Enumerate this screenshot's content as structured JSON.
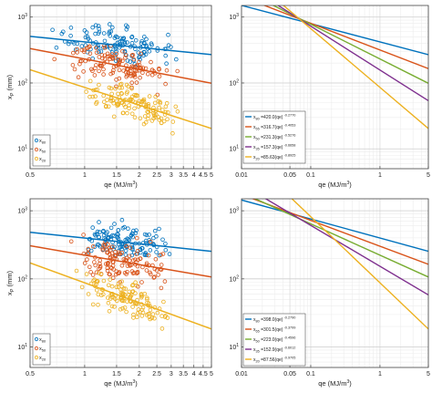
{
  "chart_data": [
    {
      "panel": "top-left",
      "type": "scatter",
      "xlabel": "qe (MJ/m³)",
      "ylabel": "x_P (mm)",
      "xscale": "log",
      "yscale": "log",
      "xlim": [
        0.5,
        5
      ],
      "ylim": [
        5,
        1500
      ],
      "xticks": [
        0.5,
        1,
        1.5,
        2,
        2.5,
        3,
        3.5,
        4,
        4.5,
        5
      ],
      "xtick_labels": [
        "0.5",
        "1",
        "1.5",
        "2",
        "2.5",
        "3",
        "3.5",
        "4",
        "4.5",
        "5"
      ],
      "yticks": [
        10,
        100,
        1000
      ],
      "ytick_labels": [
        "10¹",
        "10²",
        "10³"
      ],
      "grid": true,
      "legend": {
        "location": "bottom-left",
        "entries": [
          {
            "label": "x80",
            "color": "#0072BD"
          },
          {
            "label": "x50",
            "color": "#D95319"
          },
          {
            "label": "x20",
            "color": "#EDB120"
          }
        ]
      },
      "scatter_ranges": [
        {
          "name": "x80",
          "color": "#0072BD",
          "x_range": [
            0.6,
            4.0
          ],
          "y_range": [
            170,
            1500
          ],
          "approx_count": 130
        },
        {
          "name": "x50",
          "color": "#D95319",
          "x_range": [
            0.6,
            4.0
          ],
          "y_range": [
            45,
            420
          ],
          "approx_count": 130
        },
        {
          "name": "x20",
          "color": "#EDB120",
          "x_range": [
            0.7,
            4.0
          ],
          "y_range": [
            10,
            110
          ],
          "approx_count": 130
        }
      ],
      "fits": [
        {
          "name": "x80",
          "color": "#0072BD",
          "coef": 420.0,
          "exp": -0.277
        },
        {
          "name": "x50",
          "color": "#D95319",
          "coef": 231.3,
          "exp": -0.5276
        },
        {
          "name": "x20",
          "color": "#EDB120",
          "coef": 85.63,
          "exp": -0.8925
        }
      ]
    },
    {
      "panel": "top-right",
      "type": "line",
      "xlabel": "qe (MJ/m³)",
      "xscale": "log",
      "yscale": "log",
      "xlim": [
        0.01,
        5
      ],
      "ylim": [
        5,
        1500
      ],
      "xticks": [
        0.01,
        0.05,
        0.1,
        1,
        5
      ],
      "xtick_labels": [
        "0.01",
        "0.05",
        "0.1",
        "1",
        "5"
      ],
      "yticks": [
        10,
        100,
        1000
      ],
      "ytick_labels": [
        "10¹",
        "10²",
        "10³"
      ],
      "grid": true,
      "legend_location": "left-middle",
      "series": [
        {
          "name": "x80",
          "color": "#0072BD",
          "coef": "420.0",
          "exp": "-0.2770",
          "prefix": "=",
          "mid": "(qe)"
        },
        {
          "name": "x65",
          "color": "#D95319",
          "coef": "316.7",
          "exp": "-0.4053",
          "prefix": "=",
          "mid": "(qe)"
        },
        {
          "name": "x50",
          "color": "#77AC30",
          "coef": "231.3",
          "exp": "-0.5276",
          "prefix": "=",
          "mid": "(qe)"
        },
        {
          "name": "x35",
          "color": "#7E2F8E",
          "coef": "157.3",
          "exp": "-0.6658",
          "prefix": "=",
          "mid": "(qe)"
        },
        {
          "name": "x20",
          "color": "#EDB120",
          "coef": "85.63",
          "exp": "-0.8925",
          "prefix": "=",
          "mid": "(qe)"
        }
      ]
    },
    {
      "panel": "bottom-left",
      "type": "scatter",
      "xlabel": "qe (MJ/m³)",
      "ylabel": "x_P (mm)",
      "xscale": "log",
      "yscale": "log",
      "xlim": [
        0.5,
        5
      ],
      "ylim": [
        5,
        1500
      ],
      "xticks": [
        0.5,
        1,
        1.5,
        2,
        2.5,
        3,
        3.5,
        4,
        4.5,
        5
      ],
      "xtick_labels": [
        "0.5",
        "1",
        "1.5",
        "2",
        "2.5",
        "3",
        "3.5",
        "4",
        "4.5",
        "5"
      ],
      "yticks": [
        10,
        100,
        1000
      ],
      "ytick_labels": [
        "10¹",
        "10²",
        "10³"
      ],
      "grid": true,
      "legend": {
        "location": "bottom-left",
        "entries": [
          {
            "label": "x80",
            "color": "#0072BD"
          },
          {
            "label": "x50",
            "color": "#D95319"
          },
          {
            "label": "x20",
            "color": "#EDB120"
          }
        ]
      },
      "scatter_ranges": [
        {
          "name": "x80",
          "color": "#0072BD",
          "x_range": [
            0.75,
            3.6
          ],
          "y_range": [
            220,
            1300
          ],
          "approx_count": 130
        },
        {
          "name": "x50",
          "color": "#D95319",
          "x_range": [
            0.75,
            3.6
          ],
          "y_range": [
            70,
            520
          ],
          "approx_count": 130
        },
        {
          "name": "x20",
          "color": "#EDB120",
          "x_range": [
            0.8,
            3.6
          ],
          "y_range": [
            10,
            140
          ],
          "approx_count": 130
        }
      ],
      "fits": [
        {
          "name": "x80",
          "color": "#0072BD",
          "coef": 398.0,
          "exp": -0.279
        },
        {
          "name": "x50",
          "color": "#D95319",
          "coef": 223.0,
          "exp": -0.4596
        },
        {
          "name": "x20",
          "color": "#EDB120",
          "coef": 87.56,
          "exp": -0.9705
        }
      ]
    },
    {
      "panel": "bottom-right",
      "type": "line",
      "xlabel": "qe (MJ/m³)",
      "xscale": "log",
      "yscale": "log",
      "xlim": [
        0.01,
        5
      ],
      "ylim": [
        5,
        1500
      ],
      "xticks": [
        0.01,
        0.05,
        0.1,
        1,
        5
      ],
      "xtick_labels": [
        "0.01",
        "0.05",
        "0.1",
        "1",
        "5"
      ],
      "yticks": [
        10,
        100,
        1000
      ],
      "ytick_labels": [
        "10¹",
        "10²",
        "10³"
      ],
      "grid": true,
      "legend_location": "bottom-left",
      "series": [
        {
          "name": "x80",
          "color": "#0072BD",
          "coef": "398.0",
          "exp": "-0.2790",
          "prefix": "=",
          "mid": "(qe)"
        },
        {
          "name": "x65",
          "color": "#D95319",
          "coef": "301.5",
          "exp": "-0.3799",
          "prefix": "=",
          "mid": "(qe)"
        },
        {
          "name": "x50",
          "color": "#77AC30",
          "coef": "223.0",
          "exp": "-0.4596",
          "prefix": "=",
          "mid": "(qe)"
        },
        {
          "name": "x35",
          "color": "#7E2F8E",
          "coef": "152.9",
          "exp": "-0.6012",
          "prefix": "=",
          "mid": "(qe)"
        },
        {
          "name": "x20",
          "color": "#EDB120",
          "coef": "87.56",
          "exp": "-0.9705",
          "prefix": "=",
          "mid": "(qe)"
        }
      ]
    }
  ]
}
